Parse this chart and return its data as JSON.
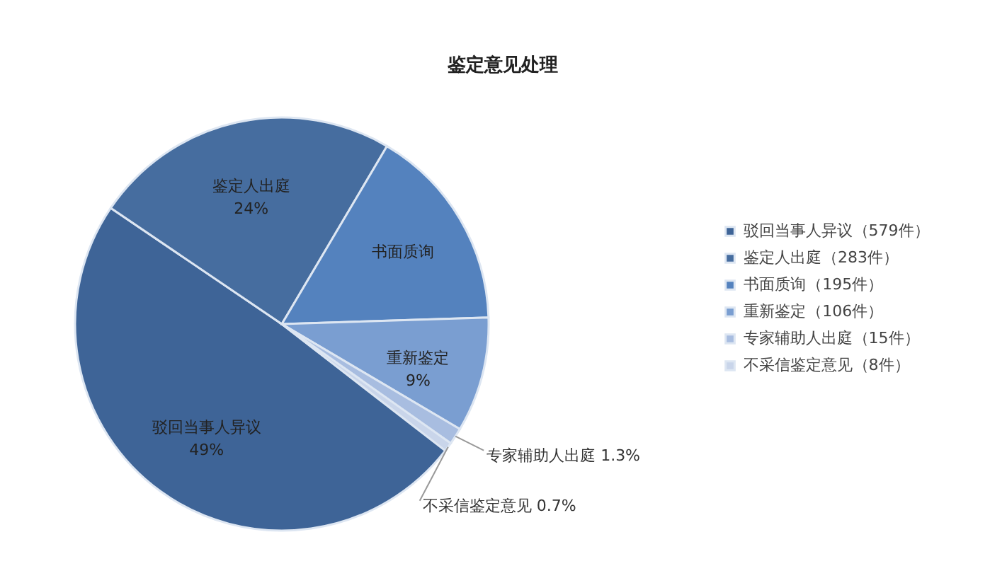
{
  "chart_data": {
    "type": "pie",
    "title": "鉴定意见处理",
    "categories": [
      "驳回当事人异议",
      "鉴定人出庭",
      "书面质询",
      "重新鉴定",
      "专家辅助人出庭",
      "不采信鉴定意见"
    ],
    "values": [
      49,
      24,
      16,
      9,
      1.3,
      0.7
    ],
    "colors": [
      "#3e6497",
      "#466d9f",
      "#5482be",
      "#7a9ed1",
      "#a8bde0",
      "#c9d5ea"
    ],
    "value_labels": [
      "49%",
      "24%",
      null,
      "9%",
      "1.3%",
      "0.7%"
    ],
    "annotations": [
      "（579件）",
      "（283件）",
      "（195件）",
      "（106件）",
      "（15件）",
      "（8件）"
    ],
    "legend": "right"
  }
}
